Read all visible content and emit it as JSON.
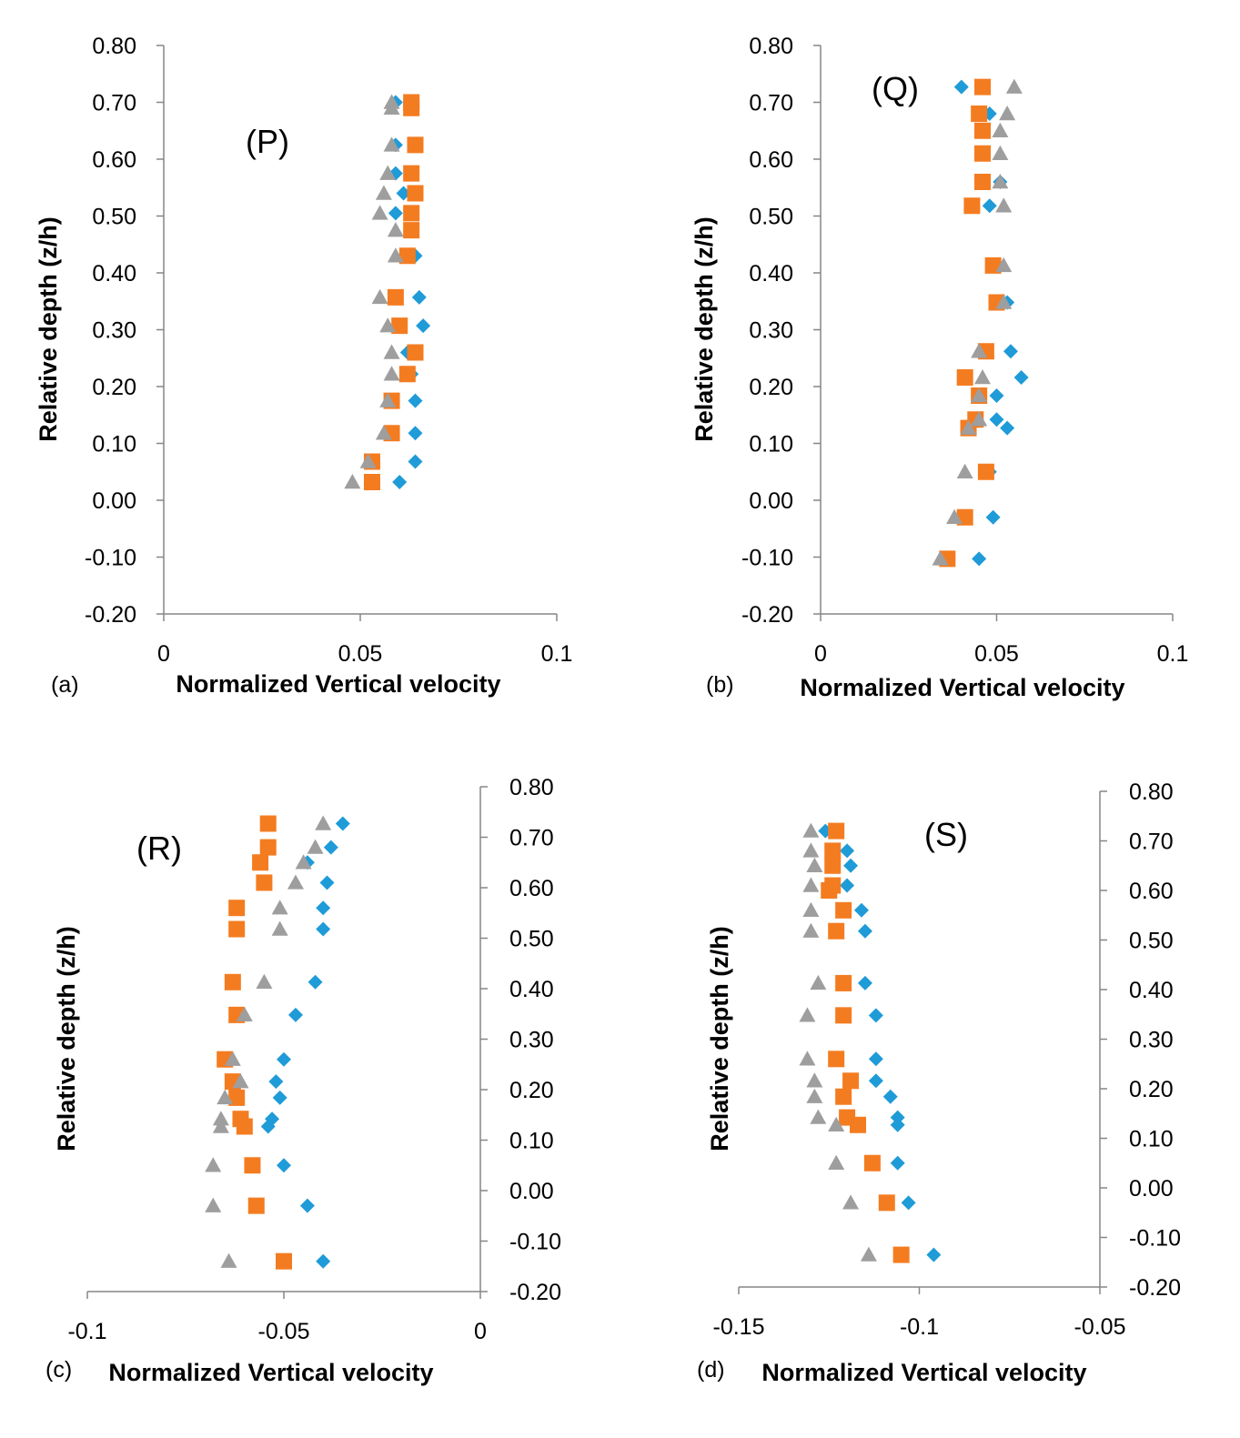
{
  "colors": {
    "series_blue": "#1f9bd8",
    "series_orange": "#f47c20",
    "series_gray": "#9e9e9e",
    "axis": "#868686"
  },
  "chart_data": [
    {
      "type": "scatter",
      "panel": "(a)",
      "label": "(P)",
      "xlabel": "Normalized Vertical velocity",
      "ylabel": "Relative depth (z/h)",
      "xlim": [
        0,
        0.1
      ],
      "ylim": [
        -0.2,
        0.8
      ],
      "xticks": [
        "0",
        "0.05",
        "0.1"
      ],
      "yticks": [
        "-0.20",
        "-0.10",
        "0.00",
        "0.10",
        "0.20",
        "0.30",
        "0.40",
        "0.50",
        "0.60",
        "0.70",
        "0.80"
      ],
      "series": [
        {
          "marker": "diamond",
          "color": "#1f9bd8",
          "points": [
            [
              0.059,
              0.7
            ],
            [
              0.059,
              0.625
            ],
            [
              0.061,
              0.54
            ],
            [
              0.059,
              0.505
            ],
            [
              0.064,
              0.43
            ],
            [
              0.065,
              0.357
            ],
            [
              0.066,
              0.307
            ],
            [
              0.062,
              0.26
            ],
            [
              0.063,
              0.222
            ],
            [
              0.064,
              0.175
            ],
            [
              0.064,
              0.118
            ],
            [
              0.064,
              0.068
            ],
            [
              0.06,
              0.032
            ],
            [
              0.059,
              0.575
            ]
          ]
        },
        {
          "marker": "square",
          "color": "#f47c20",
          "points": [
            [
              0.063,
              0.7
            ],
            [
              0.063,
              0.69
            ],
            [
              0.064,
              0.625
            ],
            [
              0.063,
              0.575
            ],
            [
              0.064,
              0.54
            ],
            [
              0.063,
              0.505
            ],
            [
              0.063,
              0.475
            ],
            [
              0.062,
              0.43
            ],
            [
              0.059,
              0.357
            ],
            [
              0.06,
              0.307
            ],
            [
              0.064,
              0.26
            ],
            [
              0.062,
              0.222
            ],
            [
              0.058,
              0.175
            ],
            [
              0.058,
              0.118
            ],
            [
              0.053,
              0.068
            ],
            [
              0.053,
              0.032
            ]
          ]
        },
        {
          "marker": "triangle",
          "color": "#9e9e9e",
          "points": [
            [
              0.058,
              0.7
            ],
            [
              0.058,
              0.69
            ],
            [
              0.058,
              0.625
            ],
            [
              0.057,
              0.575
            ],
            [
              0.056,
              0.54
            ],
            [
              0.055,
              0.505
            ],
            [
              0.059,
              0.475
            ],
            [
              0.059,
              0.43
            ],
            [
              0.055,
              0.357
            ],
            [
              0.057,
              0.307
            ],
            [
              0.058,
              0.26
            ],
            [
              0.058,
              0.222
            ],
            [
              0.057,
              0.175
            ],
            [
              0.056,
              0.118
            ],
            [
              0.052,
              0.068
            ],
            [
              0.048,
              0.032
            ]
          ]
        }
      ]
    },
    {
      "type": "scatter",
      "panel": "(b)",
      "label": "(Q)",
      "xlabel": "Normalized Vertical velocity",
      "ylabel": "Relative depth (z/h)",
      "xlim": [
        0,
        0.1
      ],
      "ylim": [
        -0.2,
        0.8
      ],
      "xticks": [
        "0",
        "0.05",
        "0.1"
      ],
      "yticks": [
        "-0.20",
        "-0.10",
        "0.00",
        "0.10",
        "0.20",
        "0.30",
        "0.40",
        "0.50",
        "0.60",
        "0.70",
        "0.80"
      ],
      "series": [
        {
          "marker": "diamond",
          "color": "#1f9bd8",
          "points": [
            [
              0.04,
              0.727
            ],
            [
              0.048,
              0.68
            ],
            [
              0.051,
              0.56
            ],
            [
              0.048,
              0.518
            ],
            [
              0.053,
              0.348
            ],
            [
              0.054,
              0.262
            ],
            [
              0.057,
              0.216
            ],
            [
              0.05,
              0.184
            ],
            [
              0.05,
              0.142
            ],
            [
              0.053,
              0.127
            ],
            [
              0.048,
              0.05
            ],
            [
              0.049,
              -0.03
            ],
            [
              0.045,
              -0.103
            ]
          ]
        },
        {
          "marker": "square",
          "color": "#f47c20",
          "points": [
            [
              0.046,
              0.727
            ],
            [
              0.045,
              0.68
            ],
            [
              0.046,
              0.65
            ],
            [
              0.046,
              0.61
            ],
            [
              0.046,
              0.56
            ],
            [
              0.043,
              0.518
            ],
            [
              0.049,
              0.413
            ],
            [
              0.05,
              0.348
            ],
            [
              0.047,
              0.262
            ],
            [
              0.041,
              0.216
            ],
            [
              0.045,
              0.184
            ],
            [
              0.044,
              0.142
            ],
            [
              0.042,
              0.127
            ],
            [
              0.047,
              0.05
            ],
            [
              0.041,
              -0.03
            ],
            [
              0.036,
              -0.103
            ]
          ]
        },
        {
          "marker": "triangle",
          "color": "#9e9e9e",
          "points": [
            [
              0.055,
              0.727
            ],
            [
              0.053,
              0.68
            ],
            [
              0.051,
              0.65
            ],
            [
              0.051,
              0.61
            ],
            [
              0.051,
              0.56
            ],
            [
              0.052,
              0.518
            ],
            [
              0.052,
              0.413
            ],
            [
              0.052,
              0.348
            ],
            [
              0.045,
              0.262
            ],
            [
              0.046,
              0.216
            ],
            [
              0.045,
              0.184
            ],
            [
              0.045,
              0.142
            ],
            [
              0.042,
              0.127
            ],
            [
              0.041,
              0.05
            ],
            [
              0.038,
              -0.03
            ],
            [
              0.034,
              -0.103
            ]
          ]
        }
      ]
    },
    {
      "type": "scatter",
      "panel": "(c)",
      "label": "(R)",
      "xlabel": "Normalized Vertical velocity",
      "ylabel": "Relative depth (z/h)",
      "xlim": [
        -0.1,
        0
      ],
      "ylim": [
        -0.2,
        0.8
      ],
      "xticks": [
        "-0.1",
        "-0.05",
        "0"
      ],
      "yticks": [
        "-0.20",
        "-0.10",
        "0.00",
        "0.10",
        "0.20",
        "0.30",
        "0.40",
        "0.50",
        "0.60",
        "0.70",
        "0.80"
      ],
      "series": [
        {
          "marker": "diamond",
          "color": "#1f9bd8",
          "points": [
            [
              -0.035,
              0.727
            ],
            [
              -0.038,
              0.68
            ],
            [
              -0.044,
              0.65
            ],
            [
              -0.039,
              0.61
            ],
            [
              -0.04,
              0.56
            ],
            [
              -0.04,
              0.518
            ],
            [
              -0.042,
              0.413
            ],
            [
              -0.047,
              0.348
            ],
            [
              -0.05,
              0.26
            ],
            [
              -0.052,
              0.216
            ],
            [
              -0.051,
              0.184
            ],
            [
              -0.053,
              0.142
            ],
            [
              -0.054,
              0.127
            ],
            [
              -0.05,
              0.05
            ],
            [
              -0.044,
              -0.03
            ],
            [
              -0.04,
              -0.14
            ]
          ]
        },
        {
          "marker": "square",
          "color": "#f47c20",
          "points": [
            [
              -0.054,
              0.727
            ],
            [
              -0.054,
              0.68
            ],
            [
              -0.056,
              0.65
            ],
            [
              -0.055,
              0.61
            ],
            [
              -0.062,
              0.56
            ],
            [
              -0.062,
              0.518
            ],
            [
              -0.063,
              0.413
            ],
            [
              -0.062,
              0.348
            ],
            [
              -0.065,
              0.26
            ],
            [
              -0.063,
              0.216
            ],
            [
              -0.062,
              0.184
            ],
            [
              -0.061,
              0.142
            ],
            [
              -0.06,
              0.127
            ],
            [
              -0.058,
              0.05
            ],
            [
              -0.057,
              -0.03
            ],
            [
              -0.05,
              -0.14
            ]
          ]
        },
        {
          "marker": "triangle",
          "color": "#9e9e9e",
          "points": [
            [
              -0.04,
              0.727
            ],
            [
              -0.042,
              0.68
            ],
            [
              -0.045,
              0.65
            ],
            [
              -0.047,
              0.61
            ],
            [
              -0.051,
              0.56
            ],
            [
              -0.051,
              0.518
            ],
            [
              -0.055,
              0.413
            ],
            [
              -0.06,
              0.348
            ],
            [
              -0.063,
              0.26
            ],
            [
              -0.061,
              0.216
            ],
            [
              -0.065,
              0.184
            ],
            [
              -0.066,
              0.142
            ],
            [
              -0.066,
              0.127
            ],
            [
              -0.068,
              0.05
            ],
            [
              -0.068,
              -0.03
            ],
            [
              -0.064,
              -0.14
            ]
          ]
        }
      ]
    },
    {
      "type": "scatter",
      "panel": "(d)",
      "label": "(S)",
      "xlabel": "Normalized Vertical velocity",
      "ylabel": "Relative depth (z/h)",
      "xlim": [
        -0.15,
        -0.05
      ],
      "ylim": [
        -0.2,
        0.8
      ],
      "xticks": [
        "-0.15",
        "-0.1",
        "-0.05"
      ],
      "yticks": [
        "-0.20",
        "-0.10",
        "0.00",
        "0.10",
        "0.20",
        "0.30",
        "0.40",
        "0.50",
        "0.60",
        "0.70",
        "0.80"
      ],
      "series": [
        {
          "marker": "diamond",
          "color": "#1f9bd8",
          "points": [
            [
              -0.126,
              0.72
            ],
            [
              -0.12,
              0.68
            ],
            [
              -0.119,
              0.65
            ],
            [
              -0.12,
              0.61
            ],
            [
              -0.116,
              0.56
            ],
            [
              -0.115,
              0.518
            ],
            [
              -0.115,
              0.413
            ],
            [
              -0.112,
              0.348
            ],
            [
              -0.112,
              0.26
            ],
            [
              -0.112,
              0.216
            ],
            [
              -0.108,
              0.184
            ],
            [
              -0.106,
              0.142
            ],
            [
              -0.106,
              0.127
            ],
            [
              -0.106,
              0.05
            ],
            [
              -0.103,
              -0.03
            ],
            [
              -0.096,
              -0.135
            ]
          ]
        },
        {
          "marker": "square",
          "color": "#f47c20",
          "points": [
            [
              -0.123,
              0.72
            ],
            [
              -0.124,
              0.68
            ],
            [
              -0.124,
              0.65
            ],
            [
              -0.124,
              0.61
            ],
            [
              -0.125,
              0.6
            ],
            [
              -0.121,
              0.56
            ],
            [
              -0.123,
              0.518
            ],
            [
              -0.121,
              0.413
            ],
            [
              -0.121,
              0.348
            ],
            [
              -0.123,
              0.26
            ],
            [
              -0.119,
              0.216
            ],
            [
              -0.121,
              0.184
            ],
            [
              -0.12,
              0.142
            ],
            [
              -0.117,
              0.127
            ],
            [
              -0.113,
              0.05
            ],
            [
              -0.109,
              -0.03
            ],
            [
              -0.105,
              -0.135
            ]
          ]
        },
        {
          "marker": "triangle",
          "color": "#9e9e9e",
          "points": [
            [
              -0.13,
              0.72
            ],
            [
              -0.13,
              0.68
            ],
            [
              -0.129,
              0.65
            ],
            [
              -0.13,
              0.61
            ],
            [
              -0.13,
              0.56
            ],
            [
              -0.13,
              0.518
            ],
            [
              -0.128,
              0.413
            ],
            [
              -0.131,
              0.348
            ],
            [
              -0.131,
              0.26
            ],
            [
              -0.129,
              0.216
            ],
            [
              -0.129,
              0.184
            ],
            [
              -0.128,
              0.142
            ],
            [
              -0.123,
              0.127
            ],
            [
              -0.123,
              0.05
            ],
            [
              -0.119,
              -0.03
            ],
            [
              -0.114,
              -0.135
            ]
          ]
        }
      ]
    }
  ]
}
